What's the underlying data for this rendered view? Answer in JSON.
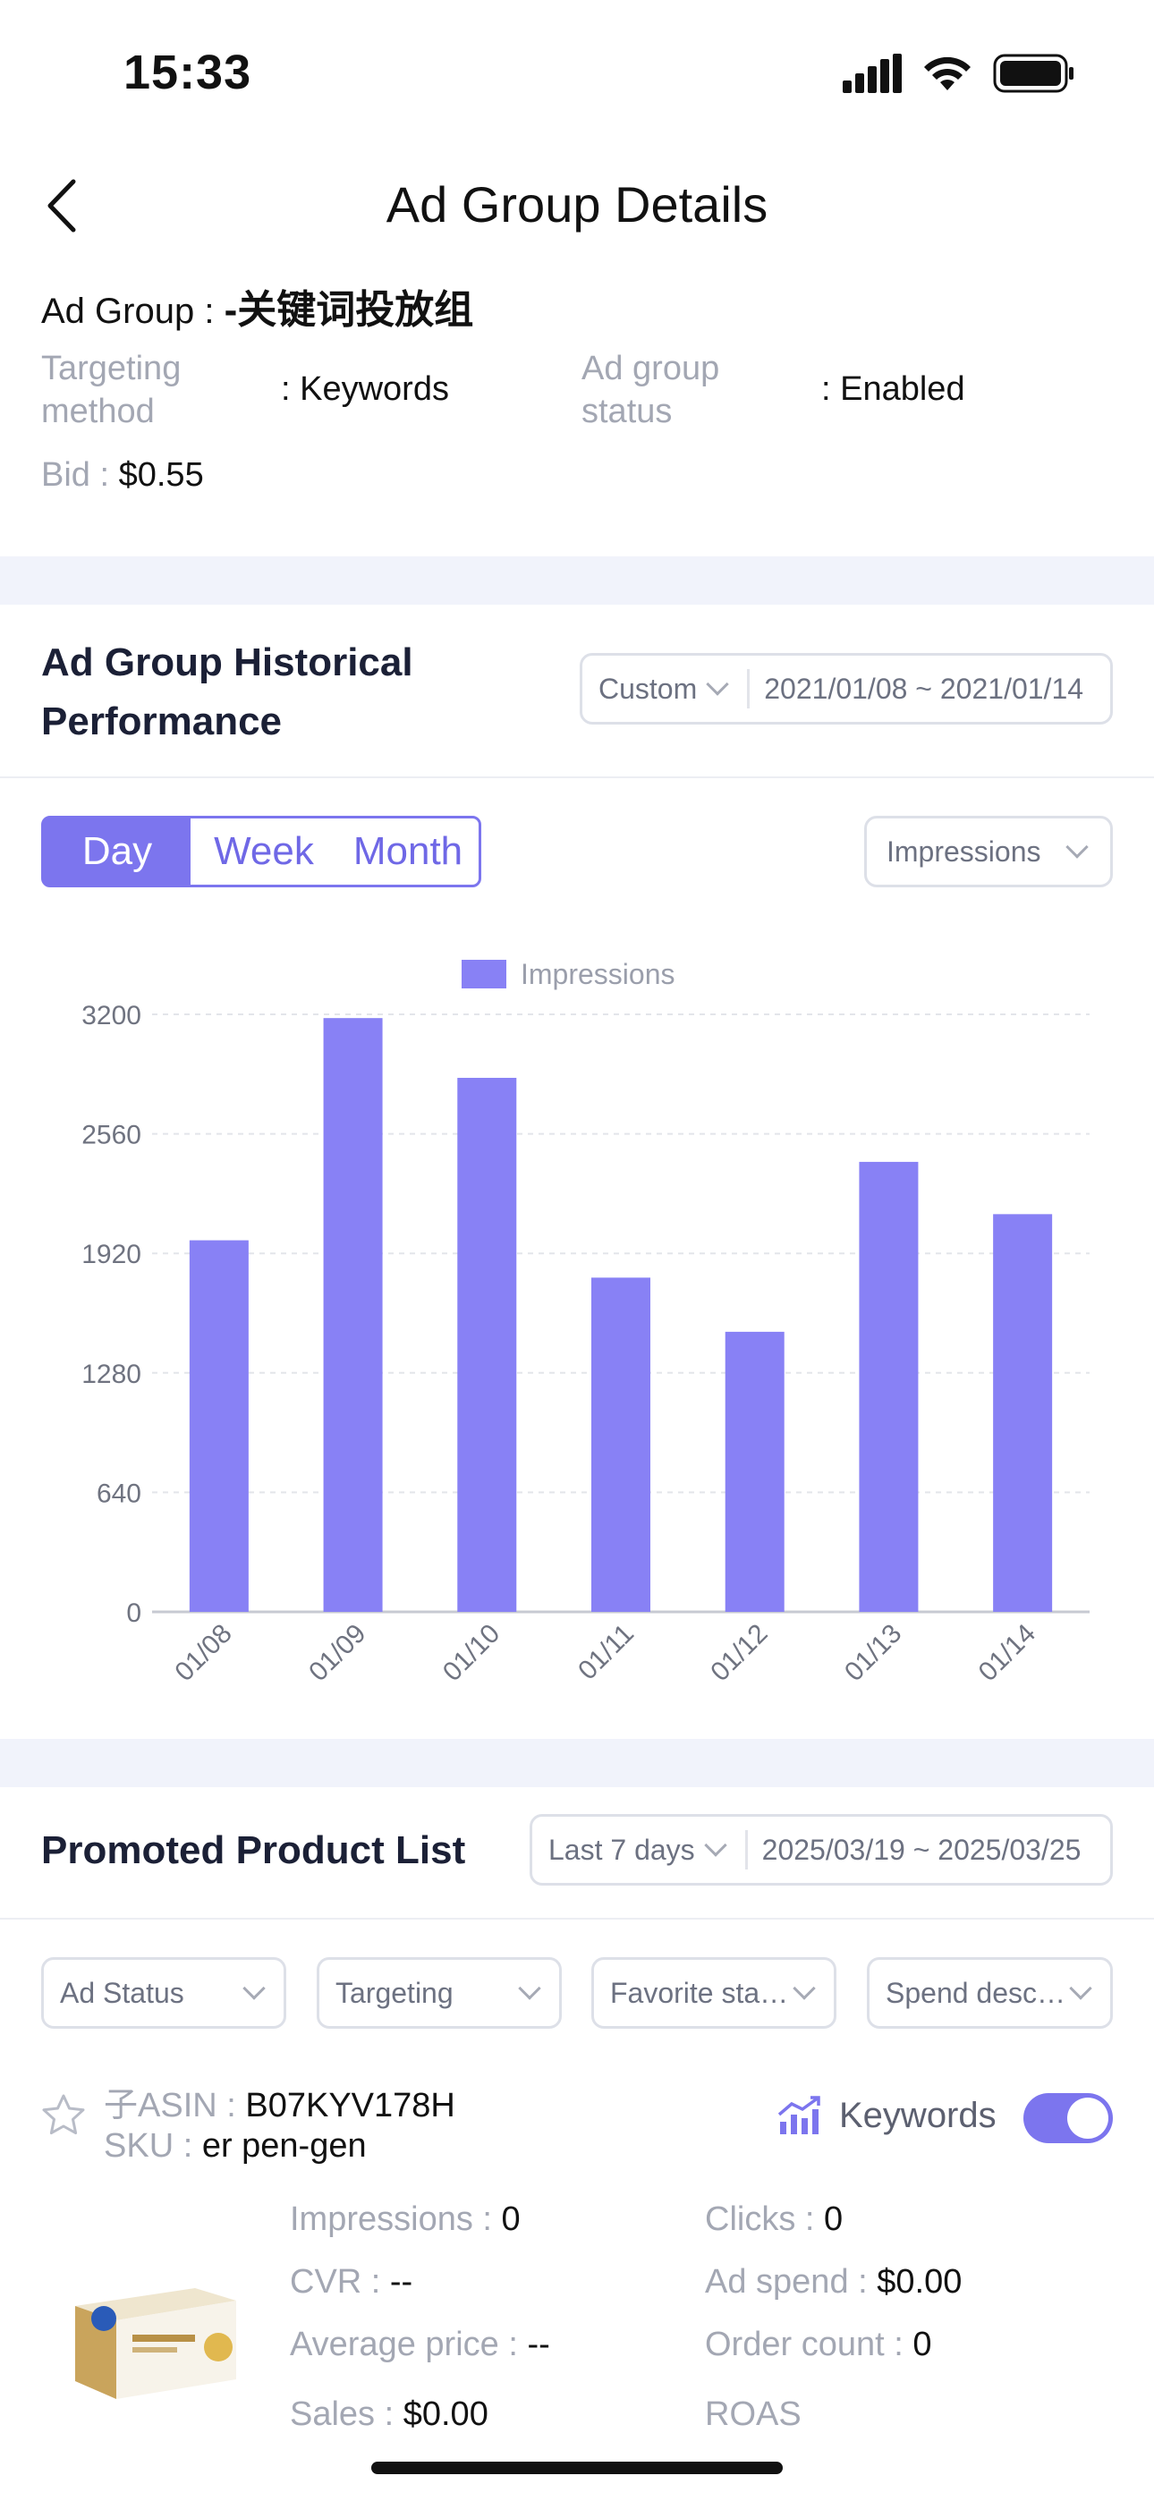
{
  "status_bar": {
    "time": "15:33"
  },
  "nav": {
    "title": "Ad Group Details"
  },
  "ad_group": {
    "label": "Ad Group : ",
    "name": "-关键词投放组",
    "targeting_label_1": "Targeting",
    "targeting_label_2": "method",
    "targeting_value": ": Keywords",
    "status_label_1": "Ad group",
    "status_label_2": "status",
    "status_value": ": Enabled",
    "bid_label": "Bid : ",
    "bid_value": "$0.55"
  },
  "performance": {
    "title_line1": "Ad Group Historical",
    "title_line2": "Performance",
    "range_type": "Custom",
    "date_range": "2021/01/08 ~ 2021/01/14",
    "granularity": [
      "Day",
      "Week",
      "Month"
    ],
    "active_granularity": "Day",
    "metric_select": "Impressions"
  },
  "chart_data": {
    "type": "bar",
    "series": [
      {
        "name": "Impressions",
        "values": [
          1990,
          3180,
          2860,
          1790,
          1500,
          2410,
          2130
        ]
      }
    ],
    "categories": [
      "01/08",
      "01/09",
      "01/10",
      "01/11",
      "01/12",
      "01/13",
      "01/14"
    ],
    "yticks": [
      "0",
      "640",
      "1280",
      "1920",
      "2560",
      "3200"
    ],
    "ylim": [
      0,
      3200
    ],
    "legend": "top-center",
    "grid": true,
    "color": "#8881f5"
  },
  "products": {
    "title": "Promoted Product List",
    "range_type": "Last 7 days",
    "date_range": "2025/03/19 ~ 2025/03/25",
    "filters": [
      "Ad Status",
      "Targeting",
      "Favorite sta…",
      "Spend desc…"
    ],
    "items": [
      {
        "asin_label": "子ASIN : ",
        "asin": "B07KYV178H",
        "sku_label": "SKU : ",
        "sku": "er pen-gen",
        "targeting_tag": "Keywords",
        "enabled": true,
        "metrics": {
          "impressions_label": "Impressions : ",
          "impressions": "0",
          "clicks_label": "Clicks : ",
          "clicks": "0",
          "cvr_label": "CVR : ",
          "cvr": "--",
          "ad_spend_label": "Ad spend : ",
          "ad_spend": "$0.00",
          "avg_price_label": "Average price : ",
          "avg_price": "--",
          "order_count_label": "Order count : ",
          "order_count": "0",
          "sales_label": "Sales : ",
          "sales": "$0.00",
          "roas_label": "ROAS"
        }
      }
    ]
  },
  "colors": {
    "accent": "#7c75ee",
    "bar": "#8881f5",
    "band": "#f1f3fb"
  }
}
